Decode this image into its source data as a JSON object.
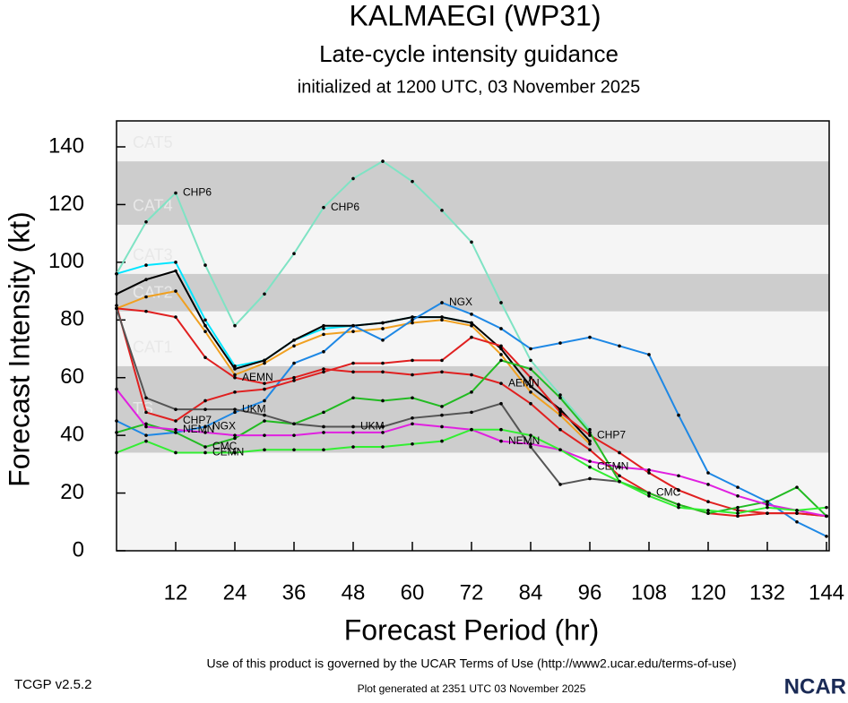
{
  "chart_data": {
    "type": "line",
    "title": "KALMAEGI (WP31)",
    "subtitle": "Late-cycle intensity guidance",
    "initialized": "initialized at 1200 UTC, 03 November 2025",
    "ylabel": "Forecast Intensity (kt)",
    "xlabel": "Forecast Period (hr)",
    "terms": "Use of this product is governed by the UCAR Terms of Use (http://www2.ucar.edu/terms-of-use)",
    "version": "TCGP v2.5.2",
    "generated": "Plot generated at 2351 UTC   03 November 2025",
    "logo": "NCAR",
    "xlim": [
      0,
      144
    ],
    "ylim": [
      0,
      149
    ],
    "xticks": [
      12,
      24,
      36,
      48,
      60,
      72,
      84,
      96,
      108,
      120,
      132,
      144
    ],
    "yticks": [
      0,
      20,
      40,
      60,
      80,
      100,
      120,
      140
    ],
    "bands": [
      {
        "label": "TS",
        "range": [
          34,
          64
        ],
        "color": "#cdcdcd"
      },
      {
        "label": "CAT1",
        "range": [
          64,
          83
        ],
        "color": "#f5f5f5"
      },
      {
        "label": "CAT2",
        "range": [
          83,
          96
        ],
        "color": "#cdcdcd"
      },
      {
        "label": "CAT3",
        "range": [
          96,
          113
        ],
        "color": "#f5f5f5"
      },
      {
        "label": "CAT4",
        "range": [
          113,
          135
        ],
        "color": "#cdcdcd"
      },
      {
        "label": "CAT5",
        "range": [
          135,
          149
        ],
        "color": "#f5f5f5"
      }
    ],
    "x": [
      0,
      6,
      12,
      18,
      24,
      30,
      36,
      42,
      48,
      54,
      60,
      66,
      72,
      78,
      84,
      90,
      96,
      102,
      108,
      114,
      120,
      126,
      132,
      138,
      144
    ],
    "series": [
      {
        "name": "CHP6",
        "color": "#7fe3c4",
        "values": [
          96,
          114,
          124,
          99,
          78,
          89,
          103,
          119,
          129,
          135,
          128,
          118,
          107,
          86,
          66,
          54,
          42,
          null,
          null,
          null,
          null,
          null,
          null,
          null,
          null
        ]
      },
      {
        "color": "#00e5ff",
        "values": [
          96,
          99,
          100,
          80,
          64,
          66,
          73,
          77,
          78,
          79,
          81,
          81,
          79,
          null,
          null,
          null,
          null,
          null,
          null,
          null,
          null,
          null,
          null,
          null,
          null
        ]
      },
      {
        "color": "#f0a020",
        "values": [
          84,
          88,
          90,
          76,
          61,
          65,
          71,
          75,
          76,
          77,
          79,
          80,
          78,
          68,
          55,
          47,
          37,
          null,
          null,
          null,
          null,
          null,
          null,
          null,
          null
        ]
      },
      {
        "color": "#000000",
        "values": [
          89,
          94,
          97,
          78,
          63,
          66,
          73,
          78,
          78,
          79,
          81,
          81,
          79,
          70,
          57,
          49,
          38,
          null,
          null,
          null,
          null,
          null,
          null,
          null,
          null
        ]
      },
      {
        "name": "NGX",
        "color": "#1e88e5",
        "values": [
          45,
          40,
          41,
          43,
          48,
          52,
          65,
          69,
          78,
          73,
          80,
          86,
          82,
          77,
          70,
          72,
          74,
          71,
          68,
          47,
          27,
          22,
          17,
          10,
          5
        ]
      },
      {
        "name": "AEMN",
        "color": "#e02020",
        "values": [
          84,
          83,
          81,
          67,
          60,
          58,
          60,
          63,
          62,
          62,
          61,
          62,
          61,
          58,
          51,
          42,
          35,
          26,
          20,
          16,
          13,
          12,
          13,
          13,
          12
        ]
      },
      {
        "name": "CHP7",
        "color": "#e02020",
        "values": [
          85,
          48,
          45,
          52,
          55,
          56,
          59,
          62,
          65,
          65,
          66,
          66,
          74,
          71,
          60,
          48,
          40,
          34,
          27,
          21,
          17,
          14,
          13,
          13,
          12
        ]
      },
      {
        "name": "CMC",
        "color": "#22bb22",
        "values": [
          41,
          44,
          41,
          36,
          39,
          45,
          44,
          48,
          53,
          52,
          53,
          50,
          55,
          66,
          63,
          53,
          41,
          24,
          20,
          16,
          13,
          15,
          17,
          22,
          12
        ]
      },
      {
        "name": "UKM",
        "color": "#555555",
        "values": [
          84,
          53,
          49,
          49,
          49,
          47,
          44,
          43,
          43,
          43,
          46,
          47,
          48,
          51,
          36,
          23,
          25,
          24,
          null,
          null,
          null,
          null,
          null,
          null,
          null
        ]
      },
      {
        "name": "NEMN",
        "color": "#e020e0",
        "values": [
          56,
          43,
          42,
          41,
          40,
          40,
          40,
          41,
          41,
          41,
          44,
          43,
          42,
          38,
          37,
          35,
          31,
          29,
          28,
          26,
          23,
          19,
          16,
          14,
          12
        ]
      },
      {
        "name": "CEMN",
        "color": "#33ee33",
        "values": [
          34,
          38,
          34,
          34,
          34,
          35,
          35,
          35,
          36,
          36,
          37,
          38,
          42,
          42,
          40,
          35,
          29,
          24,
          19,
          15,
          14,
          13,
          15,
          14,
          15
        ]
      }
    ]
  }
}
